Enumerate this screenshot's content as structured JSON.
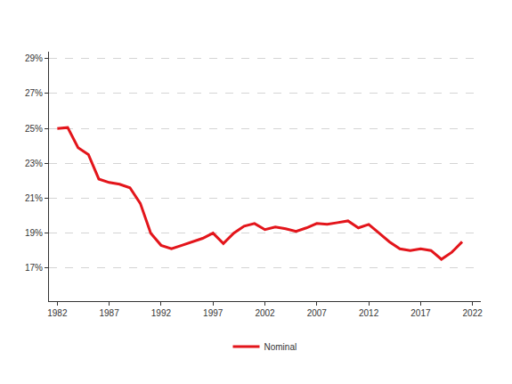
{
  "chart_data": {
    "type": "line",
    "x": [
      1982,
      1983,
      1984,
      1985,
      1986,
      1987,
      1988,
      1989,
      1990,
      1991,
      1992,
      1993,
      1994,
      1995,
      1996,
      1997,
      1998,
      1999,
      2000,
      2001,
      2002,
      2003,
      2004,
      2005,
      2006,
      2007,
      2008,
      2009,
      2010,
      2011,
      2012,
      2013,
      2014,
      2015,
      2016,
      2017,
      2018,
      2019,
      2020,
      2021
    ],
    "series": [
      {
        "name": "Nominal",
        "color": "#e3151b",
        "values": [
          25.0,
          25.05,
          23.9,
          23.5,
          22.1,
          21.9,
          21.8,
          21.6,
          20.7,
          19.0,
          18.3,
          18.1,
          18.3,
          18.5,
          18.7,
          19.0,
          18.4,
          19.0,
          19.4,
          19.55,
          19.2,
          19.35,
          19.25,
          19.1,
          19.3,
          19.55,
          19.5,
          19.6,
          19.7,
          19.3,
          19.5,
          19.0,
          18.5,
          18.1,
          18.0,
          18.1,
          18.0,
          17.5,
          17.9,
          18.5
        ]
      }
    ],
    "xlim": [
      1981.2,
      2022.8
    ],
    "xticks": [
      1982,
      1987,
      1992,
      1997,
      2002,
      2007,
      2012,
      2017,
      2022
    ],
    "ylim": [
      15.1,
      29.4
    ],
    "yticks": [
      {
        "value": 17,
        "label": "17%"
      },
      {
        "value": 19,
        "label": "19%"
      },
      {
        "value": 21,
        "label": "21%"
      },
      {
        "value": 23,
        "label": "23%"
      },
      {
        "value": 25,
        "label": "25%"
      },
      {
        "value": 27,
        "label": "27%"
      },
      {
        "value": 29,
        "label": "29%"
      }
    ],
    "grid": true,
    "legend": "bottom"
  }
}
